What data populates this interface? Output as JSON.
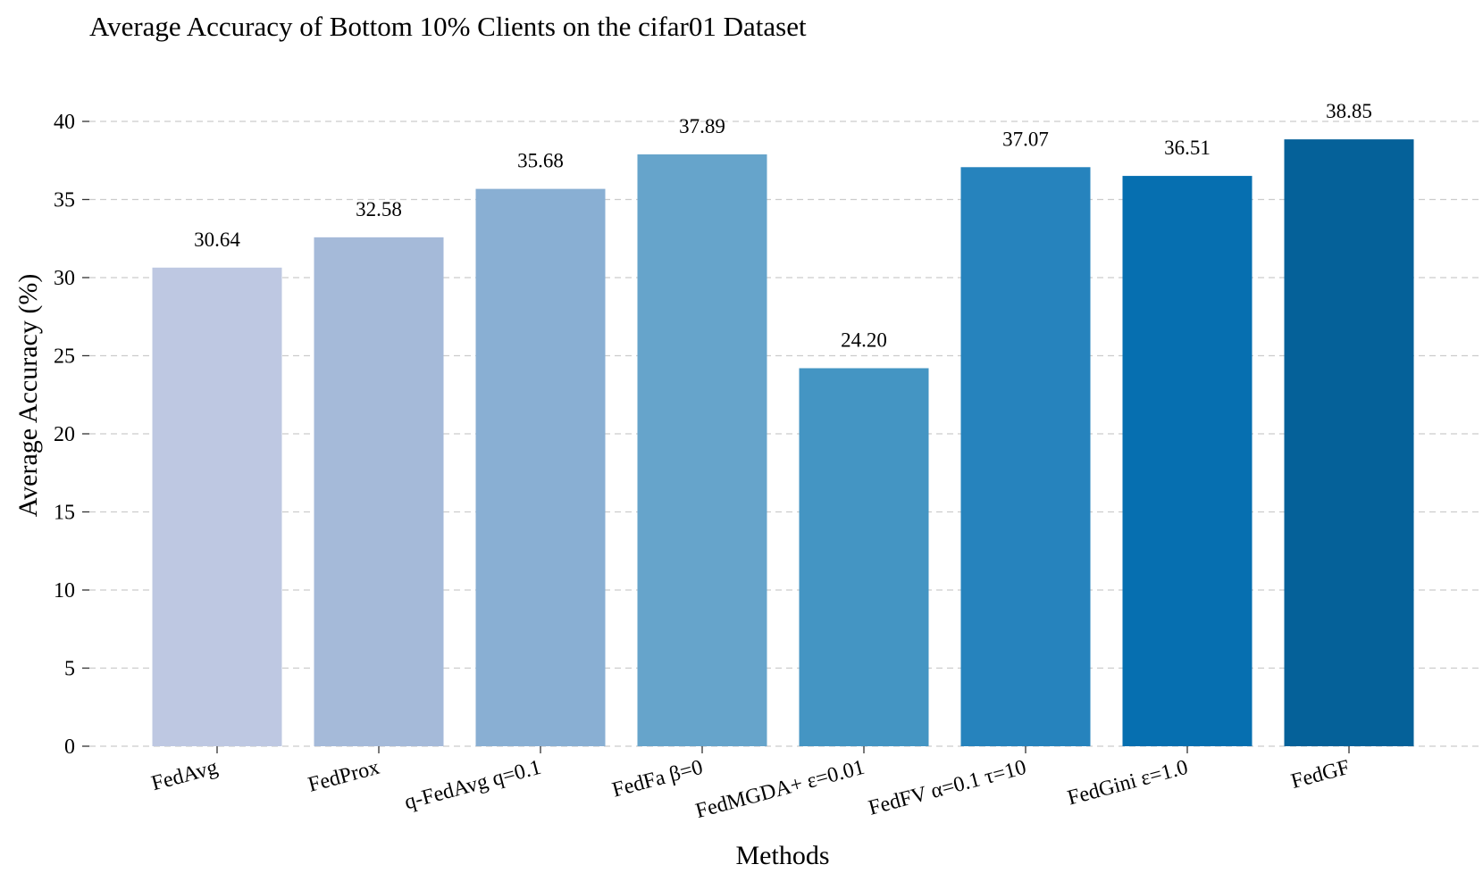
{
  "chart_data": {
    "type": "bar",
    "title": "Average Accuracy of Bottom 10% Clients on the cifar01 Dataset",
    "xlabel": "Methods",
    "ylabel": "Average Accuracy (%)",
    "categories": [
      "FedAvg",
      "FedProx",
      "q-FedAvg q=0.1",
      "FedFa β=0",
      "FedMGDA+ ε=0.01",
      "FedFV α=0.1 τ=10",
      "FedGini ε=1.0",
      "FedGF"
    ],
    "values": [
      30.64,
      32.58,
      35.68,
      37.89,
      24.2,
      37.07,
      36.51,
      38.85
    ],
    "value_labels": [
      "30.64",
      "32.58",
      "35.68",
      "37.89",
      "24.20",
      "37.07",
      "36.51",
      "38.85"
    ],
    "colors": [
      "#bec8e2",
      "#a5bad9",
      "#89afd3",
      "#66a4cb",
      "#4495c3",
      "#2683bd",
      "#066fb0",
      "#056199"
    ],
    "ylim": [
      0,
      40
    ],
    "yticks": [
      0,
      5,
      10,
      15,
      20,
      25,
      30,
      35,
      40
    ],
    "grid": true,
    "xtick_rotation_deg": -15
  }
}
